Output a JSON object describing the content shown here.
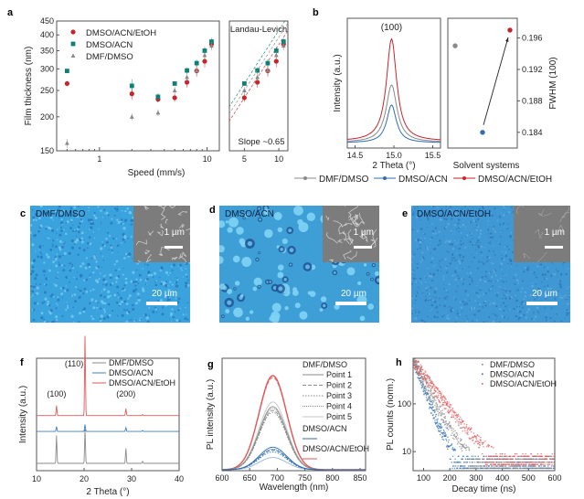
{
  "panel_labels": {
    "a": "a",
    "b": "b",
    "c": "c",
    "d": "d",
    "e": "e",
    "f": "f",
    "g": "g",
    "h": "h"
  },
  "colors": {
    "dmf_dmso": "#8a8a8a",
    "dmso_acn_teal": "#0e8073",
    "dmso_acn_blue": "#2f6db3",
    "dmso_acn_etoh": "#c8252a",
    "xrd_red": "#e05a5a",
    "xrd_blue": "#3d7fc0",
    "micro_fill": "#3aa1dc",
    "sem_gray": "#7c7c7c"
  },
  "chart_data": [
    {
      "id": "a",
      "type": "scatter",
      "title": "",
      "xlabel": "Speed (mm/s)",
      "ylabel": "Film thickness (nm)",
      "xscale": "log",
      "yscale": "log",
      "xlim": [
        0.4,
        13
      ],
      "ylim": [
        150,
        450
      ],
      "xticks": [
        1,
        10
      ],
      "xtick_labels": [
        "1",
        "10"
      ],
      "yticks": [
        150,
        200,
        250,
        300,
        350,
        400,
        450
      ],
      "ytick_labels": [
        "150",
        "200",
        "250",
        "300",
        "350",
        "400",
        "450"
      ],
      "legend": "top-left",
      "series": [
        {
          "name": "DMSO/ACN/EtOH",
          "marker": "circle",
          "color_key": "dmso_acn_etoh",
          "x": [
            0.5,
            2.0,
            3.5,
            5.0,
            6.5,
            8.0,
            9.5,
            11.0
          ],
          "y": [
            265,
            243,
            232,
            235,
            268,
            295,
            320,
            370
          ],
          "err": [
            6,
            12,
            6,
            8,
            12,
            14,
            16,
            14
          ]
        },
        {
          "name": "DMSO/ACN",
          "marker": "square",
          "color_key": "dmso_acn_teal",
          "x": [
            0.5,
            2.0,
            3.5,
            5.0,
            6.5,
            8.0,
            9.5,
            11.0
          ],
          "y": [
            295,
            260,
            237,
            265,
            296,
            315,
            350,
            378
          ],
          "err": [
            3,
            15,
            8,
            3,
            8,
            10,
            12,
            12
          ]
        },
        {
          "name": "DMF/DMSO",
          "marker": "triangle",
          "color_key": "dmf_dmso",
          "x": [
            0.5,
            2.0,
            3.5,
            5.0,
            6.5,
            8.0,
            9.5,
            11.0
          ],
          "y": [
            160,
            200,
            207,
            250,
            280,
            296,
            337,
            365
          ],
          "err": [
            6,
            6,
            6,
            8,
            10,
            12,
            12,
            14
          ]
        }
      ]
    },
    {
      "id": "a-inset",
      "type": "scatter",
      "title": "Landau-Levich",
      "annotation": "Slope ~0.65",
      "xscale": "log",
      "yscale": "log",
      "xlim": [
        3.7,
        12
      ],
      "ylim": [
        150,
        450
      ],
      "xticks": [
        5,
        10
      ],
      "xtick_labels": [
        "5",
        "10"
      ],
      "fit_slope": 0.65,
      "series_ref": "a",
      "fit_points": [
        5.0,
        6.5,
        8.0,
        9.5,
        11.0
      ]
    },
    {
      "id": "b-left",
      "type": "line",
      "title": "(100)",
      "xlabel": "2 Theta (°)",
      "ylabel": "Intensity (a.u.)",
      "xlim": [
        14.4,
        15.6
      ],
      "xticks": [
        14.5,
        15.0,
        15.5
      ],
      "xtick_labels": [
        "14.5",
        "15.0",
        "15.5"
      ],
      "peak_center": 14.97,
      "series": [
        {
          "name": "DMSO/ACN/EtOH",
          "color_key": "dmso_acn_etoh",
          "peak_height": 1.0,
          "width": 0.08,
          "baseline": 0.03
        },
        {
          "name": "DMF/DMSO",
          "color_key": "dmf_dmso",
          "peak_height": 0.56,
          "width": 0.085,
          "baseline": 0.02
        },
        {
          "name": "DMSO/ACN",
          "color_key": "dmso_acn_blue",
          "peak_height": 0.37,
          "width": 0.075,
          "baseline": 0.015
        }
      ]
    },
    {
      "id": "b-right",
      "type": "scatter",
      "xlabel": "Solvent systems",
      "ylabel": "FWHM (100)",
      "ylim": [
        0.182,
        0.1985
      ],
      "yticks": [
        0.184,
        0.188,
        0.192,
        0.196
      ],
      "ytick_labels": [
        "0.184",
        "0.188",
        "0.192",
        "0.196"
      ],
      "categories": [
        "DMF/DMSO",
        "DMSO/ACN",
        "DMSO/ACN/EtOH"
      ],
      "values": [
        0.195,
        0.184,
        0.197
      ],
      "arrow": {
        "from": "DMSO/ACN",
        "to": "DMSO/ACN/EtOH"
      }
    },
    {
      "id": "f",
      "type": "line",
      "xlabel": "2 Theta (°)",
      "ylabel": "Intensity (a.u.)",
      "xlim": [
        10,
        40
      ],
      "xticks": [
        10,
        20,
        30,
        40
      ],
      "xtick_labels": [
        "10",
        "20",
        "30",
        "40"
      ],
      "annotations": [
        {
          "text": "(100)",
          "x": 14.2
        },
        {
          "text": "(110)",
          "x": 20.2
        },
        {
          "text": "(200)",
          "x": 28.8
        }
      ],
      "peaks_x": [
        14.2,
        20.2,
        28.8,
        32.3
      ],
      "series": [
        {
          "name": "DMF/DMSO",
          "color_key": "dmf_dmso",
          "offset": 0.0,
          "peaks": [
            0.28,
            0.34,
            0.15,
            0.02
          ]
        },
        {
          "name": "DMSO/ACN",
          "color_key": "xrd_blue",
          "offset": 0.32,
          "peaks": [
            0.05,
            0.07,
            0.04,
            0.01
          ]
        },
        {
          "name": "DMSO/ACN/EtOH",
          "color_key": "xrd_red",
          "offset": 0.48,
          "peaks": [
            0.1,
            0.8,
            0.07,
            0.01
          ]
        }
      ],
      "legend": "top-right"
    },
    {
      "id": "g",
      "type": "line",
      "xlabel": "Wavelength (nm)",
      "ylabel": "PL intensity (a.u.)",
      "xlim": [
        600,
        860
      ],
      "xticks": [
        600,
        650,
        700,
        750,
        800,
        850
      ],
      "xtick_labels": [
        "600",
        "650",
        "700",
        "750",
        "800",
        "850"
      ],
      "peak_center": 692,
      "peak_sigma": 25,
      "legend_groups": [
        {
          "title": "DMF/DMSO",
          "items": [
            "Point 1",
            "Point 2",
            "Point 3",
            "Point 4",
            "Point 5"
          ]
        },
        {
          "title": "DMSO/ACN",
          "items": []
        },
        {
          "title": "DMSO/ACN/EtOH",
          "items": []
        }
      ],
      "series": [
        {
          "name": "DMSO/ACN/EtOH Point 1",
          "group": "DMSO/ACN/EtOH",
          "color_key": "xrd_red",
          "height": 1.0,
          "dash": "solid"
        },
        {
          "name": "DMSO/ACN/EtOH Point 2",
          "group": "DMSO/ACN/EtOH",
          "color_key": "xrd_red",
          "height": 0.98,
          "dash": "dashed"
        },
        {
          "name": "DMF/DMSO Point 1",
          "group": "DMF/DMSO",
          "color_key": "dmf_dmso",
          "height": 0.67,
          "dash": "solid"
        },
        {
          "name": "DMF/DMSO Point 2",
          "group": "DMF/DMSO",
          "color_key": "dmf_dmso",
          "height": 0.63,
          "dash": "dashed"
        },
        {
          "name": "DMF/DMSO Point 3",
          "group": "DMF/DMSO",
          "color_key": "dmf_dmso",
          "height": 0.61,
          "dash": "dotted"
        },
        {
          "name": "DMF/DMSO Point 4",
          "group": "DMF/DMSO",
          "color_key": "dmf_dmso",
          "height": 0.65,
          "dash": "dotdash"
        },
        {
          "name": "DMF/DMSO Point 5",
          "group": "DMF/DMSO",
          "color_key": "dmf_dmso",
          "height": 0.72,
          "dash": "light"
        },
        {
          "name": "DMSO/ACN Point 1",
          "group": "DMSO/ACN",
          "color_key": "dmso_acn_blue",
          "height": 0.24,
          "dash": "solid"
        },
        {
          "name": "DMSO/ACN Point 2",
          "group": "DMSO/ACN",
          "color_key": "dmso_acn_blue",
          "height": 0.21,
          "dash": "dashed"
        },
        {
          "name": "DMSO/ACN Point 3",
          "group": "DMSO/ACN",
          "color_key": "dmso_acn_blue",
          "height": 0.19,
          "dash": "dotted"
        },
        {
          "name": "DMSO/ACN Point 4",
          "group": "DMSO/ACN",
          "color_key": "dmso_acn_blue",
          "height": 0.22,
          "dash": "dotdash"
        },
        {
          "name": "DMSO/ACN Point 5",
          "group": "DMSO/ACN",
          "color_key": "dmso_acn_blue",
          "height": 0.13,
          "dash": "light"
        }
      ]
    },
    {
      "id": "h",
      "type": "scatter",
      "xlabel": "Decay time (ns)",
      "ylabel": "PL counts (norm.)",
      "yscale": "log",
      "xlim": [
        60,
        600
      ],
      "ylim": [
        4,
        900
      ],
      "xticks": [
        100,
        200,
        300,
        400,
        500,
        600
      ],
      "xtick_labels": [
        "100",
        "200",
        "300",
        "400",
        "500",
        "600"
      ],
      "yticks": [
        10,
        100
      ],
      "ytick_labels": [
        "10",
        "100"
      ],
      "legend": "top-right",
      "series": [
        {
          "name": "DMF/DMSO",
          "color_key": "dmf_dmso",
          "tau_ns": 38,
          "floor": 5
        },
        {
          "name": "DMSO/ACN",
          "color_key": "dmso_acn_blue",
          "tau_ns": 28,
          "floor": 5
        },
        {
          "name": "DMSO/ACN/EtOH",
          "color_key": "xrd_red",
          "tau_ns": 55,
          "floor": 6
        }
      ]
    }
  ],
  "micrographs": [
    {
      "panel": "c",
      "label": "DMF/DMSO",
      "inset_scale": "1 µm",
      "scale": "20 µm",
      "morphology": "fine-dots"
    },
    {
      "panel": "d",
      "label": "DMSO/ACN",
      "inset_scale": "1 µm",
      "scale": "20 µm",
      "morphology": "large-islands"
    },
    {
      "panel": "e",
      "label": "DMSO/ACN/EtOH",
      "inset_scale": "1 µm",
      "scale": "20 µm",
      "morphology": "uniform"
    }
  ]
}
